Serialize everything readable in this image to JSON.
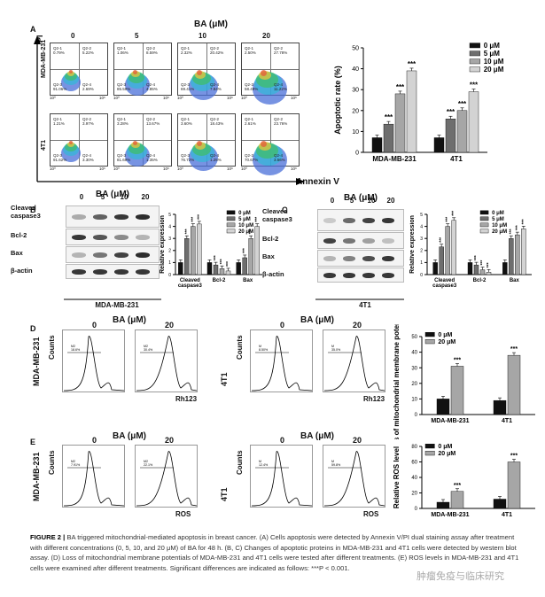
{
  "panelA": {
    "letter": "A",
    "header": "BA (μM)",
    "doses": [
      "0",
      "5",
      "10",
      "20"
    ],
    "ylabel": "PI",
    "xlabel": "Annexin V",
    "rows": [
      {
        "cell": "MDA-MB-231",
        "plots": [
          {
            "q1": "Q2-1",
            "q1v": "0.79%",
            "q2": "Q2-2",
            "q2v": "5.22%",
            "q3": "Q2-3",
            "q3v": "91.06%",
            "q4": "Q2-4",
            "q4v": "2.69%"
          },
          {
            "q1": "Q2-1",
            "q1v": "1.06%",
            "q2": "Q2-2",
            "q2v": "8.59%",
            "q3": "Q2-3",
            "q3v": "85.59%",
            "q4": "Q2-4",
            "q4v": "4.85%"
          },
          {
            "q1": "Q2-1",
            "q1v": "2.32%",
            "q2": "Q2-2",
            "q2v": "20.42%",
            "q3": "Q2-3",
            "q3v": "69.41%",
            "q4": "Q2-4",
            "q4v": "7.84%"
          },
          {
            "q1": "Q2-1",
            "q1v": "2.50%",
            "q2": "Q2-2",
            "q2v": "27.78%",
            "q3": "Q2-3",
            "q3v": "58.49%",
            "q4": "Q2-4",
            "q4v": "11.22%"
          }
        ]
      },
      {
        "cell": "4T1",
        "plots": [
          {
            "q1": "Q2-1",
            "q1v": "1.21%",
            "q2": "Q2-2",
            "q2v": "3.97%",
            "q3": "Q2-3",
            "q3v": "91.62%",
            "q4": "Q2-4",
            "q4v": "3.30%"
          },
          {
            "q1": "Q2-1",
            "q1v": "3.28%",
            "q2": "Q2-2",
            "q2v": "13.67%",
            "q3": "Q2-3",
            "q3v": "81.69%",
            "q4": "Q2-4",
            "q4v": "1.35%"
          },
          {
            "q1": "Q2-1",
            "q1v": "3.60%",
            "q2": "Q2-2",
            "q2v": "18.43%",
            "q3": "Q2-3",
            "q3v": "76.72%",
            "q4": "Q2-4",
            "q4v": "1.25%"
          },
          {
            "q1": "Q2-1",
            "q1v": "2.61%",
            "q2": "Q2-2",
            "q2v": "23.76%",
            "q3": "Q2-3",
            "q3v": "70.67%",
            "q4": "Q2-4",
            "q4v": "3.56%"
          }
        ]
      }
    ],
    "tick_lo": "10⁰",
    "tick_hi": "10⁶"
  },
  "panelB": {
    "letter": "B",
    "header": "BA (μM)",
    "doses": [
      "0",
      "5",
      "10",
      "20"
    ],
    "cell": "MDA-MB-231",
    "proteins": [
      "Cleaved caspase3",
      "Bcl-2",
      "Bax",
      "β-actin"
    ]
  },
  "panelC": {
    "letter": "C",
    "header": "BA (μM)",
    "doses": [
      "0",
      "5",
      "10",
      "20"
    ],
    "cell": "4T1",
    "proteins": [
      "Cleaved caspase3",
      "Bcl-2",
      "Bax",
      "β-actin"
    ]
  },
  "panelD": {
    "letter": "D",
    "header": "BA (μM)",
    "doses": [
      "0",
      "20"
    ],
    "rows": [
      "MDA-MB-231",
      "4T1"
    ],
    "ylabel": "Counts",
    "xlabel": "Rh123",
    "gates": [
      {
        "name": "M2",
        "value": "18.6%"
      },
      {
        "name": "M2",
        "value": "30.4%"
      },
      {
        "name": "M",
        "value": "8.50%"
      },
      {
        "name": "M",
        "value": "35.0%"
      }
    ]
  },
  "panelE": {
    "letter": "E",
    "header": "BA (μM)",
    "doses": [
      "0",
      "20"
    ],
    "rows": [
      "MDA-MB-231",
      "4T1"
    ],
    "ylabel": "Counts",
    "xlabel": "ROS",
    "gates": [
      {
        "name": "M2",
        "value": "7.91%"
      },
      {
        "name": "M2",
        "value": "22.1%"
      },
      {
        "name": "M",
        "value": "12.4%"
      },
      {
        "name": "M",
        "value": "59.8%"
      }
    ]
  },
  "sig": "***",
  "chart_data": [
    {
      "id": "A-apoptosis",
      "type": "bar",
      "ylabel": "Apoptotic rate (%)",
      "ylim": [
        0,
        50
      ],
      "yticks": [
        0,
        10,
        20,
        30,
        40,
        50
      ],
      "categories": [
        "MDA-MB-231",
        "4T1"
      ],
      "series": [
        {
          "name": "0 μM",
          "values": [
            7,
            7
          ],
          "color": "#111111"
        },
        {
          "name": "5 μM",
          "values": [
            13.5,
            16
          ],
          "color": "#6e6e6e"
        },
        {
          "name": "10 μM",
          "values": [
            28,
            20
          ],
          "color": "#a6a6a6"
        },
        {
          "name": "20 μM",
          "values": [
            39,
            29
          ],
          "color": "#d3d3d3"
        }
      ]
    },
    {
      "id": "B-wb",
      "type": "bar",
      "ylabel": "Relative expression",
      "ylim": [
        0,
        5
      ],
      "yticks": [
        0,
        1,
        2,
        3,
        4,
        5
      ],
      "categories": [
        "Cleaved caspase3",
        "Bcl-2",
        "Bax"
      ],
      "series": [
        {
          "name": "0 μM",
          "values": [
            1,
            1,
            1
          ],
          "color": "#111111"
        },
        {
          "name": "5 μM",
          "values": [
            3,
            0.8,
            1.4
          ],
          "color": "#6e6e6e"
        },
        {
          "name": "10 μM",
          "values": [
            4,
            0.5,
            3
          ],
          "color": "#a6a6a6"
        },
        {
          "name": "20 μM",
          "values": [
            4.2,
            0.3,
            4
          ],
          "color": "#d3d3d3"
        }
      ]
    },
    {
      "id": "C-wb",
      "type": "bar",
      "ylabel": "Relative expression",
      "ylim": [
        0,
        5
      ],
      "yticks": [
        0,
        1,
        2,
        3,
        4,
        5
      ],
      "categories": [
        "Cleaved caspase3",
        "Bcl-2",
        "Bax"
      ],
      "series": [
        {
          "name": "0 μM",
          "values": [
            1,
            1,
            1
          ],
          "color": "#111111"
        },
        {
          "name": "5 μM",
          "values": [
            2.3,
            0.8,
            3
          ],
          "color": "#6e6e6e"
        },
        {
          "name": "10 μM",
          "values": [
            4,
            0.4,
            3.3
          ],
          "color": "#a6a6a6"
        },
        {
          "name": "20 μM",
          "values": [
            4.5,
            0.2,
            3.8
          ],
          "color": "#d3d3d3"
        }
      ]
    },
    {
      "id": "D-mmp",
      "type": "bar",
      "ylabel": "Loss of mitochondrial membrane potential (%)",
      "ylim": [
        0,
        50
      ],
      "yticks": [
        0,
        10,
        20,
        30,
        40,
        50
      ],
      "categories": [
        "MDA-MB-231",
        "4T1"
      ],
      "series": [
        {
          "name": "0 μM",
          "values": [
            10,
            9
          ],
          "color": "#111111"
        },
        {
          "name": "20 μM",
          "values": [
            31,
            38
          ],
          "color": "#a6a6a6"
        }
      ]
    },
    {
      "id": "E-ros",
      "type": "bar",
      "ylabel": "Relative ROS level",
      "ylim": [
        0,
        80
      ],
      "yticks": [
        0,
        20,
        40,
        60,
        80
      ],
      "categories": [
        "MDA-MB-231",
        "4T1"
      ],
      "series": [
        {
          "name": "0 μM",
          "values": [
            8,
            12
          ],
          "color": "#111111"
        },
        {
          "name": "20 μM",
          "values": [
            22,
            60
          ],
          "color": "#a6a6a6"
        }
      ]
    }
  ],
  "caption": {
    "fig": "FIGURE 2 |",
    "text": " BA triggered mitochondrial-mediated apoptosis in breast cancer. (A) Cells apoptosis were detected by Annexin V/PI dual staining assay after treatment with different concentrations (0, 5, 10, and 20 μM) of BA for 48 h. (B, C) Changes of apoptotic proteins in MDA-MB-231 and 4T1 cells were detected by western blot assay. (D) Loss of mitochondrial membrane potentials of MDA-MB-231 and 4T1 cells were tested after different treatments. (E) ROS levels in MDA-MB-231 and 4T1 cells were examined after different treatments. Significant differences are indicated as follows: ***P < 0.001."
  },
  "watermark": "肿瘤免疫与临床研究"
}
